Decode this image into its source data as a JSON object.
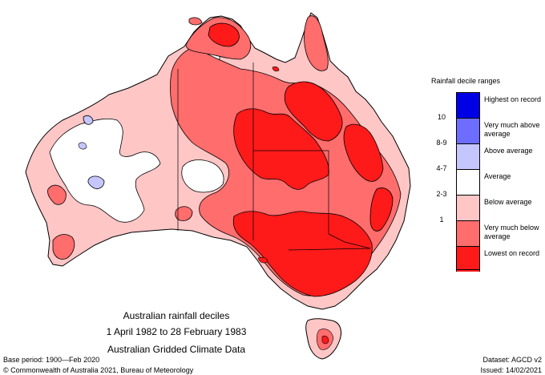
{
  "map": {
    "title_lines": [
      "Australian rainfall deciles",
      "1 April 1982 to 28 February 1983",
      "Australian Gridded Climate Data"
    ],
    "base_period": "Base period: 1900—Feb 2020",
    "dataset": "Dataset: AGCD v2",
    "copyright": "© Commonwealth of Australia 2021, Bureau of Meteorology",
    "issued": "Issued: 14/02/2021"
  },
  "legend": {
    "title": "Rainfall decile ranges",
    "items": [
      {
        "code": "",
        "label": "Highest on record",
        "color": "#0000e6"
      },
      {
        "code": "10",
        "label": "Very much above average",
        "color": "#6d6dff"
      },
      {
        "code": "8-9",
        "label": "Above average",
        "color": "#c6c6ff"
      },
      {
        "code": "4-7",
        "label": "Average",
        "color": "#ffffff"
      },
      {
        "code": "2-3",
        "label": "Below average",
        "color": "#ffc6c6"
      },
      {
        "code": "1",
        "label": "Very much below average",
        "color": "#ff6d6d"
      },
      {
        "code": "",
        "label": "Lowest on record",
        "color": "#ff1a1a"
      }
    ]
  },
  "colors": {
    "lowest": "#ff1a1a",
    "very_much_below": "#ff6d6d",
    "below": "#ffc6c6",
    "average": "#ffffff",
    "above": "#c6c6ff",
    "very_much_above": "#6d6dff",
    "outline": "#000000"
  }
}
